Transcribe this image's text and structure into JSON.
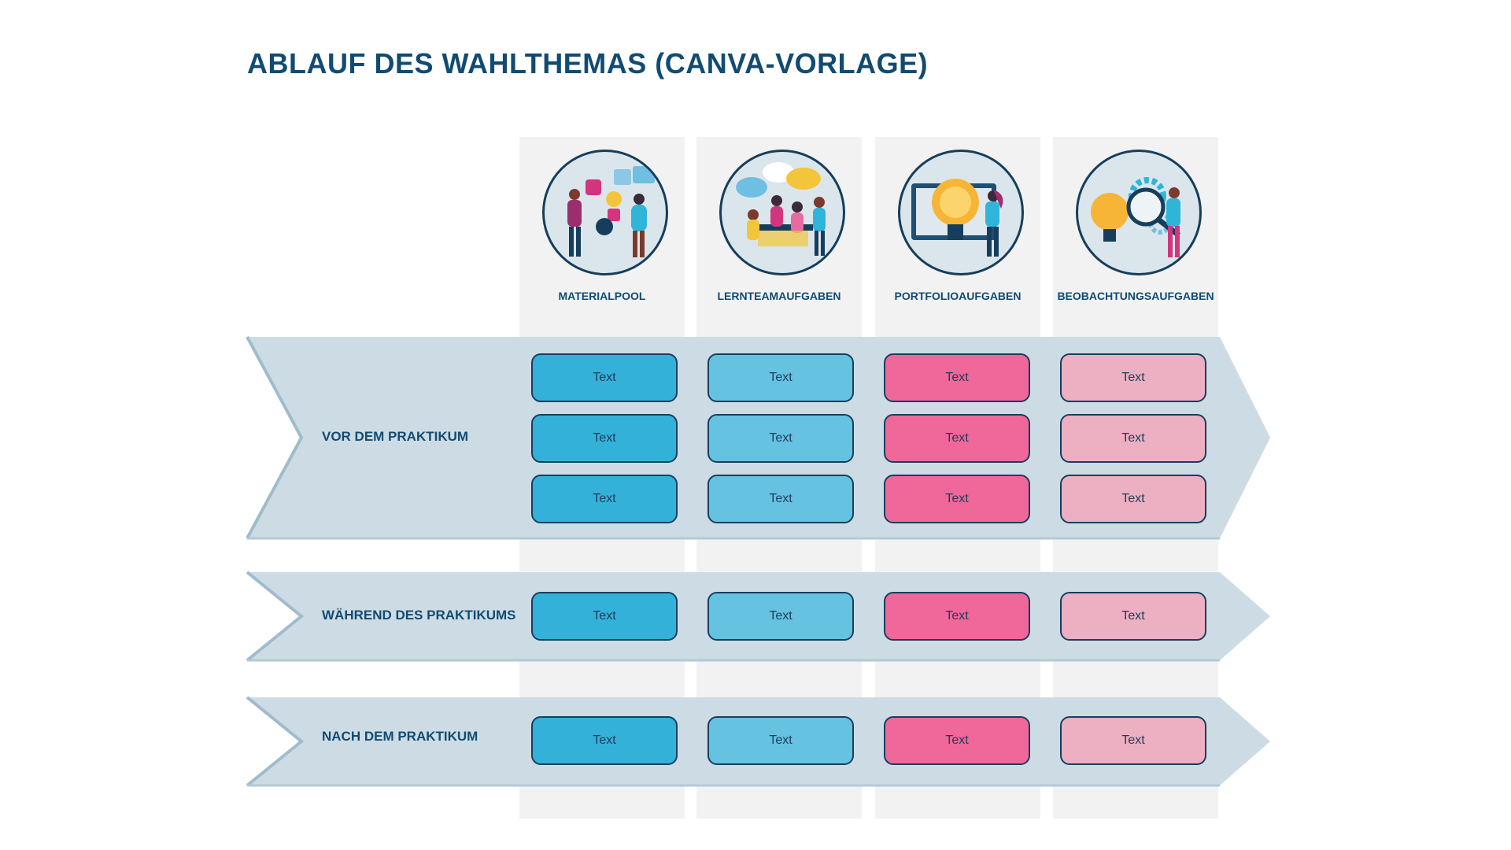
{
  "title": "ABLAUF DES WAHLTHEMAS (CANVA-VORLAGE)",
  "columns": [
    {
      "label": "MATERIALPOOL",
      "icon": "social-media-icon",
      "color": "#33b1d9"
    },
    {
      "label": "LERNTEAMAUFGABEN",
      "icon": "team-discussion-icon",
      "color": "#65c2e1"
    },
    {
      "label": "PORTFOLIOAUFGABEN",
      "icon": "lightbulb-presentation-icon",
      "color": "#f06799"
    },
    {
      "label": "BEOBACHTUNGSAUFGABEN",
      "icon": "magnifier-observation-icon",
      "color": "#ecb0c2"
    }
  ],
  "rows": [
    {
      "label": "VOR DEM PRAKTIKUM",
      "cells": [
        [
          "Text",
          "Text",
          "Text",
          "Text"
        ],
        [
          "Text",
          "Text",
          "Text",
          "Text"
        ],
        [
          "Text",
          "Text",
          "Text",
          "Text"
        ]
      ]
    },
    {
      "label": "WÄHREND DES PRAKTIKUMS",
      "cells": [
        [
          "Text",
          "Text",
          "Text",
          "Text"
        ]
      ]
    },
    {
      "label": "NACH DEM PRAKTIKUM",
      "cells": [
        [
          "Text",
          "Text",
          "Text",
          "Text"
        ]
      ]
    }
  ],
  "colors": {
    "band": "#cddce4",
    "band_edge": "#9fbccd",
    "column_background": "#f2f2f3",
    "text": "#114b72"
  }
}
